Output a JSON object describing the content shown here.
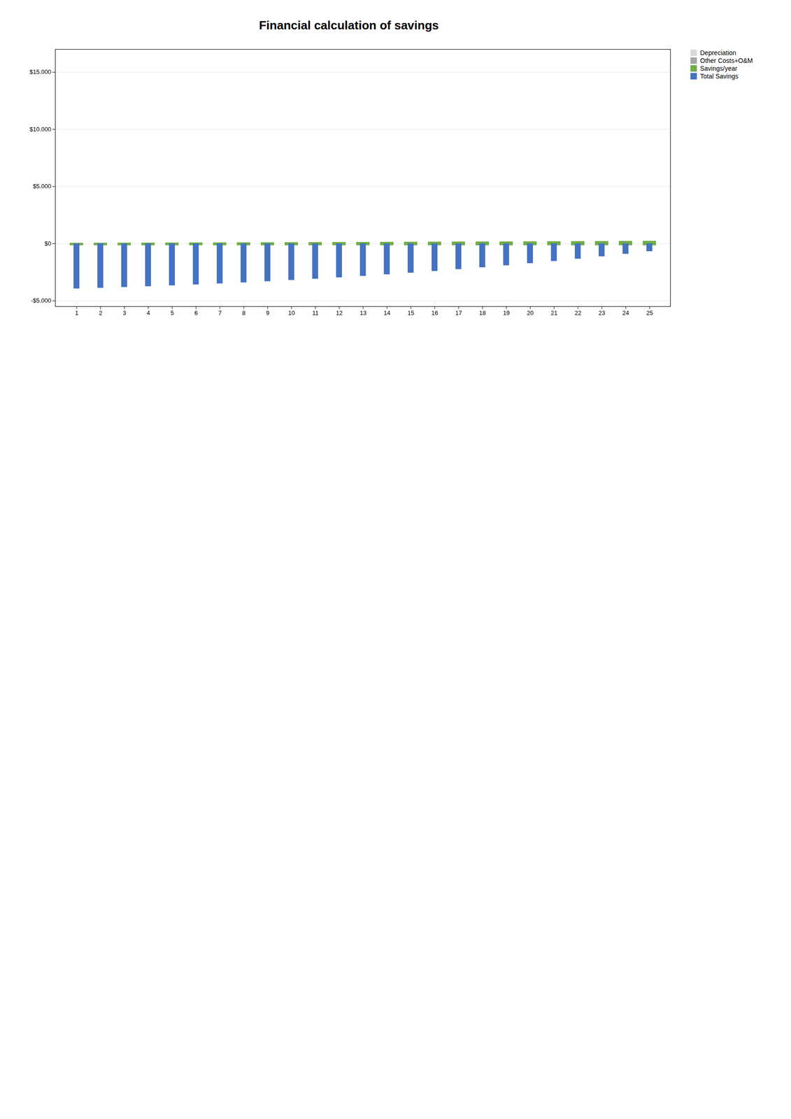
{
  "chart_data": {
    "type": "bar",
    "title": "Financial calculation of savings",
    "categories": [
      "1",
      "2",
      "3",
      "4",
      "5",
      "6",
      "7",
      "8",
      "9",
      "10",
      "11",
      "12",
      "13",
      "14",
      "15",
      "16",
      "17",
      "18",
      "19",
      "20",
      "21",
      "22",
      "23",
      "24",
      "25"
    ],
    "series": [
      {
        "name": "Depreciation",
        "color": "#d9d9d9",
        "values": [
          0,
          0,
          0,
          0,
          0,
          0,
          0,
          0,
          0,
          0,
          0,
          0,
          0,
          0,
          0,
          0,
          0,
          0,
          0,
          0,
          0,
          0,
          0,
          0,
          0
        ]
      },
      {
        "name": "Other Costs+O&M",
        "color": "#a6a6a6",
        "values": [
          -160,
          -160,
          -160,
          -160,
          -160,
          -160,
          -160,
          -160,
          -160,
          -160,
          -160,
          -160,
          -160,
          -160,
          -160,
          -160,
          -160,
          -160,
          -160,
          -160,
          -160,
          -160,
          -160,
          -160,
          -160
        ]
      },
      {
        "name": "Savings/year",
        "color": "#70ad47",
        "values": [
          215,
          220,
          225,
          230,
          235,
          242,
          248,
          254,
          260,
          267,
          274,
          281,
          288,
          295,
          303,
          311,
          318,
          326,
          334,
          343,
          351,
          360,
          369,
          379,
          388
        ]
      },
      {
        "name": "Total Savings",
        "color": "#4472c4",
        "type": "overlay",
        "values": [
          -3945,
          -3885,
          -3820,
          -3750,
          -3675,
          -3593,
          -3505,
          -3411,
          -3311,
          -3204,
          -3090,
          -2969,
          -2841,
          -2706,
          -2563,
          -2412,
          -2254,
          -2088,
          -1914,
          -1731,
          -1540,
          -1340,
          -1131,
          -912,
          -684
        ]
      }
    ],
    "ylim": [
      -5500,
      17000
    ],
    "yticks": [
      {
        "value": 15000,
        "label": "$15.000"
      },
      {
        "value": 10000,
        "label": "$10.000"
      },
      {
        "value": 5000,
        "label": "$5.000"
      },
      {
        "value": 0,
        "label": "$0"
      },
      {
        "value": -5000,
        "label": "-$5.000"
      }
    ],
    "grid": true,
    "legend": "right",
    "stacked": true
  }
}
